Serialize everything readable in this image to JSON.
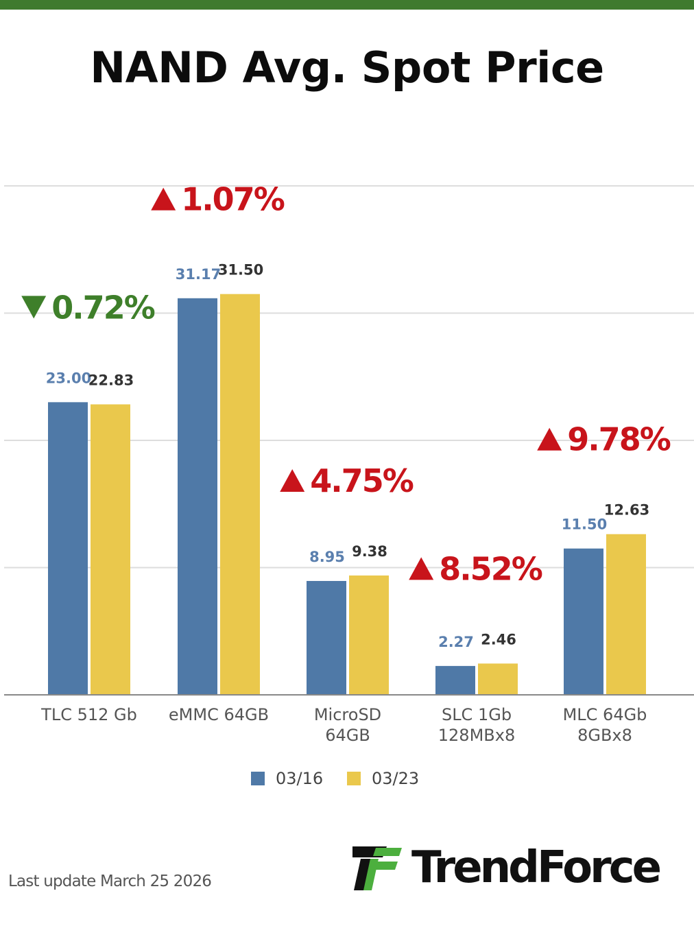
{
  "header": {
    "title": "NAND Avg. Spot Price"
  },
  "colors": {
    "top_bar": "#3f7a2e",
    "series_a": "#4f79a7",
    "series_b": "#eac84c",
    "up": "#c8141b",
    "down": "#3e7f2a",
    "grid": "#dddddd",
    "axis": "#888888"
  },
  "chart_data": {
    "type": "bar",
    "title": "NAND Avg. Spot Price",
    "categories": [
      "TLC 512 Gb",
      "eMMC 64GB",
      "MicroSD 64GB",
      "SLC 1Gb 128MBx8",
      "MLC 64Gb 8GBx8"
    ],
    "category_lines": [
      [
        "TLC 512 Gb"
      ],
      [
        "eMMC 64GB"
      ],
      [
        "MicroSD",
        "64GB"
      ],
      [
        "SLC 1Gb",
        "128MBx8"
      ],
      [
        "MLC 64Gb",
        "8GBx8"
      ]
    ],
    "series": [
      {
        "name": "03/16",
        "values": [
          23.0,
          31.17,
          8.95,
          2.27,
          11.5
        ],
        "labels": [
          "23.00",
          "31.17",
          "8.95",
          "2.27",
          "11.50"
        ]
      },
      {
        "name": "03/23",
        "values": [
          22.83,
          31.5,
          9.38,
          2.46,
          12.63
        ],
        "labels": [
          "22.83",
          "31.50",
          "9.38",
          "2.46",
          "12.63"
        ]
      }
    ],
    "changes": [
      {
        "label": "0.72%",
        "direction": "down"
      },
      {
        "label": "1.07%",
        "direction": "up"
      },
      {
        "label": "4.75%",
        "direction": "up"
      },
      {
        "label": "8.52%",
        "direction": "up"
      },
      {
        "label": "9.78%",
        "direction": "up"
      }
    ],
    "ylim": [
      0,
      40
    ],
    "grid": true,
    "legend": "bottom-center",
    "xlabel": "",
    "ylabel": ""
  },
  "footer": {
    "last_update": "Last update March 25  2026"
  },
  "brand": {
    "name": "TrendForce",
    "logo_icon": "trendforce-logo-icon"
  }
}
